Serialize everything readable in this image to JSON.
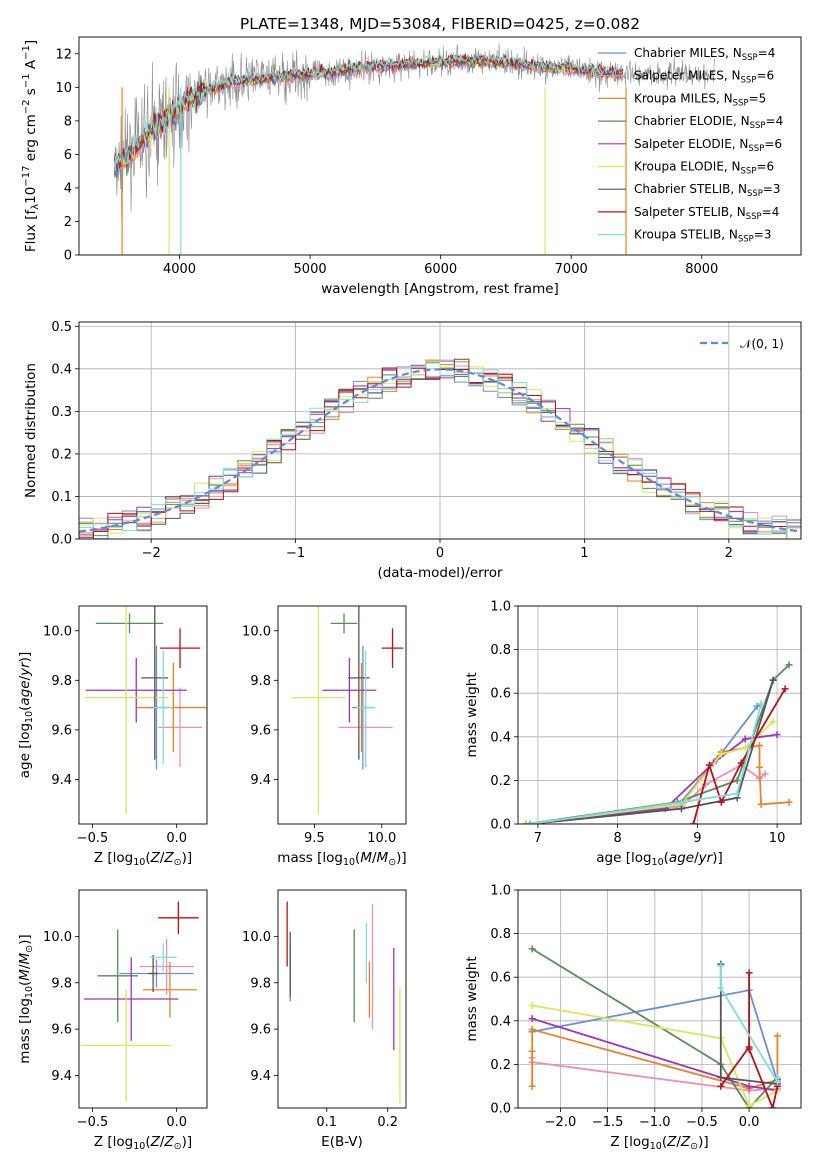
{
  "page_title": "PLATE=1348, MJD=53084, FIBERID=0425, z=0.082",
  "chart_data": [
    {
      "id": "spectrum",
      "type": "line",
      "title": "PLATE=1348, MJD=53084, FIBERID=0425, z=0.082",
      "xlabel": "wavelength [Angstrom, rest frame]",
      "ylabel": "Flux [f_λ10^-17 erg cm^-2 s^-1 A^-1]",
      "xlim": [
        3230,
        8760
      ],
      "ylim": [
        0,
        13
      ],
      "xticks": [
        "4000",
        "5000",
        "6000",
        "7000",
        "8000"
      ],
      "yticks": [
        "0",
        "2",
        "4",
        "6",
        "8",
        "10",
        "12"
      ],
      "grid": false,
      "legend_position": "upper-right",
      "continuum": {
        "x": [
          3500,
          3600,
          3700,
          3800,
          3900,
          4000,
          4100,
          4200,
          4400,
          4600,
          4800,
          5000,
          5200,
          5400,
          5600,
          5800,
          6000,
          6200,
          6400,
          6600,
          6800,
          7000,
          7200,
          7400
        ],
        "y": [
          5.3,
          5.8,
          6.6,
          7.6,
          8.0,
          8.9,
          9.4,
          9.8,
          10.3,
          10.5,
          10.7,
          10.8,
          10.9,
          11.2,
          11.3,
          11.4,
          11.5,
          11.6,
          11.5,
          11.4,
          11.2,
          11.1,
          10.9,
          10.8
        ]
      },
      "data_extent": [
        3500,
        8100
      ],
      "model_extent": [
        3500,
        7400
      ],
      "series": [
        {
          "name": "Chabrier MILES, N_SSP=4",
          "color": "#6a8fd8"
        },
        {
          "name": "Salpeter MILES, N_SSP=6",
          "color": "#e991b9"
        },
        {
          "name": "Kroupa MILES, N_SSP=5",
          "color": "#e8832a"
        },
        {
          "name": "Chabrier ELODIE, N_SSP=4",
          "color": "#5a8a5e"
        },
        {
          "name": "Salpeter ELODIE, N_SSP=6",
          "color": "#9b36b7"
        },
        {
          "name": "Kroupa ELODIE, N_SSP=6",
          "color": "#d5e85f"
        },
        {
          "name": "Chabrier STELIB, N_SSP=3",
          "color": "#555555"
        },
        {
          "name": "Salpeter STELIB, N_SSP=4",
          "color": "#b5121b"
        },
        {
          "name": "Kroupa STELIB, N_SSP=3",
          "color": "#84dbd9"
        }
      ],
      "data_color": "#8c8c8c"
    },
    {
      "id": "residuals",
      "type": "area",
      "xlabel": "(data-model)/error",
      "ylabel": "Normed distribution",
      "xlim": [
        -2.5,
        2.5
      ],
      "ylim": [
        0,
        0.51
      ],
      "xticks": [
        "−2",
        "−1",
        "0",
        "1",
        "2"
      ],
      "yticks": [
        "0.0",
        "0.1",
        "0.2",
        "0.3",
        "0.4",
        "0.5"
      ],
      "grid": true,
      "legend_position": "upper-right",
      "gaussian_label": "𝒩(0, 1)",
      "gaussian_color": "#5b8bd9",
      "bin_width": 0.1
    },
    {
      "id": "age-vs-Z",
      "type": "scatter",
      "xlabel": "Z [log10(Z/Z⊙)]",
      "ylabel": "age [log10(age/yr)]",
      "xlim": [
        -0.58,
        0.18
      ],
      "ylim": [
        9.22,
        10.1
      ],
      "xticks": [
        "−0.5",
        "0.0"
      ],
      "yticks": [
        "9.4",
        "9.6",
        "9.8",
        "10.0"
      ],
      "points": [
        {
          "x": -0.12,
          "xerr": 0.07,
          "y": 9.69,
          "yerr": 0.25,
          "color": "#6a8fd8"
        },
        {
          "x": 0.02,
          "xerr": 0.13,
          "y": 9.61,
          "yerr": 0.16,
          "color": "#e991b9"
        },
        {
          "x": -0.02,
          "xerr": 0.22,
          "y": 9.69,
          "yerr": 0.18,
          "color": "#e8832a"
        },
        {
          "x": -0.28,
          "xerr": 0.2,
          "y": 10.03,
          "yerr": 0.04,
          "color": "#5a8a5e"
        },
        {
          "x": -0.24,
          "xerr": 0.3,
          "y": 9.76,
          "yerr": 0.13,
          "color": "#9b36b7"
        },
        {
          "x": -0.3,
          "xerr": 0.25,
          "y": 9.73,
          "yerr": 0.47,
          "color": "#d5e85f"
        },
        {
          "x": -0.13,
          "xerr": 0.08,
          "y": 9.81,
          "yerr": 0.33,
          "color": "#555555"
        },
        {
          "x": 0.02,
          "xerr": 0.12,
          "y": 9.93,
          "yerr": 0.08,
          "color": "#b5121b"
        },
        {
          "x": -0.08,
          "xerr": 0.06,
          "y": 9.69,
          "yerr": 0.23,
          "color": "#84dbd9"
        }
      ]
    },
    {
      "id": "age-vs-mass",
      "type": "scatter",
      "xlabel": "mass [log10(M/M⊙)]",
      "ylabel": "",
      "xlim": [
        9.23,
        10.18
      ],
      "ylim": [
        9.22,
        10.1
      ],
      "xticks": [
        "9.5",
        "10.0"
      ],
      "yticks": [
        "9.4",
        "9.6",
        "9.8",
        "10.0"
      ],
      "points": [
        {
          "x": 9.86,
          "xerr": 0.08,
          "y": 9.69,
          "yerr": 0.25,
          "color": "#6a8fd8"
        },
        {
          "x": 9.88,
          "xerr": 0.2,
          "y": 9.61,
          "yerr": 0.16,
          "color": "#e991b9"
        },
        {
          "x": 9.85,
          "xerr": 0.05,
          "y": 9.69,
          "yerr": 0.18,
          "color": "#e8832a"
        },
        {
          "x": 9.72,
          "xerr": 0.1,
          "y": 10.03,
          "yerr": 0.04,
          "color": "#5a8a5e"
        },
        {
          "x": 9.76,
          "xerr": 0.2,
          "y": 9.76,
          "yerr": 0.13,
          "color": "#9b36b7"
        },
        {
          "x": 9.53,
          "xerr": 0.2,
          "y": 9.73,
          "yerr": 0.47,
          "color": "#d5e85f"
        },
        {
          "x": 9.83,
          "xerr": 0.08,
          "y": 9.81,
          "yerr": 0.33,
          "color": "#555555"
        },
        {
          "x": 10.08,
          "xerr": 0.08,
          "y": 9.93,
          "yerr": 0.08,
          "color": "#b5121b"
        },
        {
          "x": 9.88,
          "xerr": 0.07,
          "y": 9.69,
          "yerr": 0.23,
          "color": "#84dbd9"
        }
      ]
    },
    {
      "id": "mass-weight-vs-age",
      "type": "line",
      "xlabel": "age [log10(age/yr)]",
      "ylabel": "mass weight",
      "xlim": [
        6.75,
        10.3
      ],
      "ylim": [
        0,
        1.0
      ],
      "xticks": [
        "7",
        "8",
        "9",
        "10"
      ],
      "yticks": [
        "0.0",
        "0.2",
        "0.4",
        "0.6",
        "0.8",
        "1.0"
      ],
      "grid": true,
      "series": [
        {
          "name": "Chabrier MILES",
          "color": "#6a8fd8",
          "x": [
            6.9,
            8.75,
            9.25,
            9.75,
            9.8
          ],
          "y": [
            0.0,
            0.08,
            0.3,
            0.54,
            0.55
          ]
        },
        {
          "name": "Salpeter MILES",
          "color": "#e991b9",
          "x": [
            6.9,
            8.8,
            9.1,
            9.55,
            9.78,
            9.85
          ],
          "y": [
            0.0,
            0.08,
            0.18,
            0.27,
            0.21,
            0.23
          ]
        },
        {
          "name": "Kroupa MILES",
          "color": "#e8832a",
          "x": [
            6.9,
            8.8,
            9.3,
            9.78,
            9.78,
            9.8,
            10.15
          ],
          "y": [
            0.0,
            0.09,
            0.33,
            0.36,
            0.26,
            0.09,
            0.1
          ]
        },
        {
          "name": "Chabrier ELODIE",
          "color": "#5a8a5e",
          "x": [
            6.85,
            8.75,
            9.5,
            9.95,
            10.15
          ],
          "y": [
            0.0,
            0.1,
            0.2,
            0.66,
            0.73
          ]
        },
        {
          "name": "Salpeter ELODIE",
          "color": "#9b36b7",
          "x": [
            6.85,
            8.6,
            9.2,
            9.6,
            10.0
          ],
          "y": [
            0.0,
            0.07,
            0.28,
            0.39,
            0.41
          ]
        },
        {
          "name": "Kroupa ELODIE",
          "color": "#d5e85f",
          "x": [
            6.85,
            8.8,
            9.3,
            9.6,
            9.95
          ],
          "y": [
            0.0,
            0.09,
            0.32,
            0.35,
            0.47
          ]
        },
        {
          "name": "Chabrier STELIB",
          "color": "#555555",
          "x": [
            6.9,
            8.8,
            9.5,
            9.95
          ],
          "y": [
            0.0,
            0.07,
            0.12,
            0.66
          ]
        },
        {
          "name": "Salpeter STELIB",
          "color": "#b5121b",
          "x": [
            8.95,
            9.15,
            9.3,
            9.55,
            10.1
          ],
          "y": [
            0.0,
            0.27,
            0.1,
            0.28,
            0.62
          ]
        },
        {
          "name": "Kroupa STELIB",
          "color": "#84dbd9",
          "x": [
            6.9,
            8.8,
            9.5,
            9.8
          ],
          "y": [
            0.0,
            0.1,
            0.14,
            0.55
          ]
        }
      ]
    },
    {
      "id": "mass-vs-Z",
      "type": "scatter",
      "xlabel": "Z [log10(Z/Z⊙)]",
      "ylabel": "mass [log10(M/M⊙)]",
      "xlim": [
        -0.58,
        0.18
      ],
      "ylim": [
        9.26,
        10.2
      ],
      "xticks": [
        "−0.5",
        "0.0"
      ],
      "yticks": [
        "9.4",
        "9.6",
        "9.8",
        "10.0"
      ],
      "points": [
        {
          "x": -0.12,
          "xerr": 0.22,
          "y": 9.84,
          "yerr": 0.06,
          "color": "#6a8fd8"
        },
        {
          "x": -0.06,
          "xerr": 0.16,
          "y": 9.87,
          "yerr": 0.12,
          "color": "#e991b9"
        },
        {
          "x": -0.04,
          "xerr": 0.16,
          "y": 9.77,
          "yerr": 0.12,
          "color": "#e8832a"
        },
        {
          "x": -0.35,
          "xerr": 0.12,
          "y": 9.83,
          "yerr": 0.2,
          "color": "#5a8a5e"
        },
        {
          "x": -0.27,
          "xerr": 0.28,
          "y": 9.73,
          "yerr": 0.18,
          "color": "#9b36b7"
        },
        {
          "x": -0.3,
          "xerr": 0.27,
          "y": 9.53,
          "yerr": 0.24,
          "color": "#d5e85f"
        },
        {
          "x": -0.14,
          "xerr": 0.03,
          "y": 9.84,
          "yerr": 0.08,
          "color": "#555555"
        },
        {
          "x": 0.01,
          "xerr": 0.12,
          "y": 10.08,
          "yerr": 0.07,
          "color": "#b5121b"
        },
        {
          "x": -0.08,
          "xerr": 0.08,
          "y": 9.91,
          "yerr": 0.06,
          "color": "#84dbd9"
        }
      ]
    },
    {
      "id": "mass-vs-ebv",
      "type": "scatter",
      "xlabel": "E(B-V)",
      "ylabel": "",
      "xlim": [
        0.02,
        0.23
      ],
      "ylim": [
        9.26,
        10.2
      ],
      "xticks": [
        "0.1",
        "0.2"
      ],
      "yticks": [
        "9.4",
        "9.6",
        "9.8",
        "10.0"
      ],
      "points": [
        {
          "x": 0.04,
          "y": 9.84,
          "yerr": 0.12,
          "color": "#6a8fd8"
        },
        {
          "x": 0.175,
          "y": 9.87,
          "yerr": 0.27,
          "color": "#e991b9"
        },
        {
          "x": 0.17,
          "y": 9.77,
          "yerr": 0.12,
          "color": "#e8832a"
        },
        {
          "x": 0.145,
          "y": 9.83,
          "yerr": 0.2,
          "color": "#5a8a5e"
        },
        {
          "x": 0.21,
          "y": 9.73,
          "yerr": 0.22,
          "color": "#9b36b7"
        },
        {
          "x": 0.22,
          "y": 9.53,
          "yerr": 0.25,
          "color": "#d5e85f"
        },
        {
          "x": 0.04,
          "y": 9.88,
          "yerr": 0.14,
          "color": "#555555"
        },
        {
          "x": 0.035,
          "y": 10.01,
          "yerr": 0.14,
          "color": "#b5121b"
        },
        {
          "x": 0.165,
          "y": 9.93,
          "yerr": 0.13,
          "color": "#84dbd9"
        }
      ]
    },
    {
      "id": "mass-weight-vs-Z",
      "type": "line",
      "xlabel": "Z [log10(Z/Z⊙)]",
      "ylabel": "mass weight",
      "xlim": [
        -2.45,
        0.55
      ],
      "ylim": [
        0,
        1.0
      ],
      "xticks": [
        "−2.0",
        "−1.5",
        "−1.0",
        "−0.5",
        "0.0"
      ],
      "yticks": [
        "0.0",
        "0.2",
        "0.4",
        "0.6",
        "0.8",
        "1.0"
      ],
      "grid": true,
      "series": [
        {
          "name": "Chabrier MILES",
          "color": "#6a8fd8",
          "x": [
            -2.3,
            0.0,
            0.3
          ],
          "y": [
            0.35,
            0.54,
            0.12
          ]
        },
        {
          "name": "Salpeter MILES",
          "color": "#e991b9",
          "x": [
            -2.3,
            -2.3,
            0.0,
            0.3,
            0.3
          ],
          "y": [
            0.23,
            0.21,
            0.08,
            0.09,
            0.12
          ]
        },
        {
          "name": "Kroupa MILES",
          "color": "#e8832a",
          "x": [
            -2.3,
            -2.3,
            -2.3,
            0.0,
            0.3,
            0.3
          ],
          "y": [
            0.1,
            0.26,
            0.36,
            0.09,
            0.13,
            0.33
          ]
        },
        {
          "name": "Chabrier ELODIE",
          "color": "#5a8a5e",
          "x": [
            -2.3,
            -0.3,
            0.0,
            0.3
          ],
          "y": [
            0.73,
            0.2,
            0.0,
            0.14
          ]
        },
        {
          "name": "Salpeter ELODIE",
          "color": "#9b36b7",
          "x": [
            -2.3,
            0.0,
            0.3,
            0.3
          ],
          "y": [
            0.41,
            0.1,
            0.08,
            0.13
          ]
        },
        {
          "name": "Kroupa ELODIE",
          "color": "#d5e85f",
          "x": [
            -2.3,
            -0.3,
            0.0,
            0.3,
            0.3
          ],
          "y": [
            0.47,
            0.32,
            0.01,
            0.08,
            0.14
          ]
        },
        {
          "name": "Chabrier STELIB",
          "color": "#555555",
          "x": [
            -0.3,
            -0.3,
            0.3
          ],
          "y": [
            0.66,
            0.14,
            0.11
          ]
        },
        {
          "name": "Salpeter STELIB",
          "color": "#b5121b",
          "x": [
            -0.3,
            0.0,
            0.0,
            0.0,
            0.25,
            0.3
          ],
          "y": [
            0.1,
            0.28,
            0.62,
            0.27,
            0.0,
            0.1
          ]
        },
        {
          "name": "Kroupa STELIB",
          "color": "#84dbd9",
          "x": [
            -0.3,
            -0.3,
            0.3,
            0.3
          ],
          "y": [
            0.65,
            0.55,
            0.12,
            0.14
          ]
        }
      ]
    }
  ]
}
